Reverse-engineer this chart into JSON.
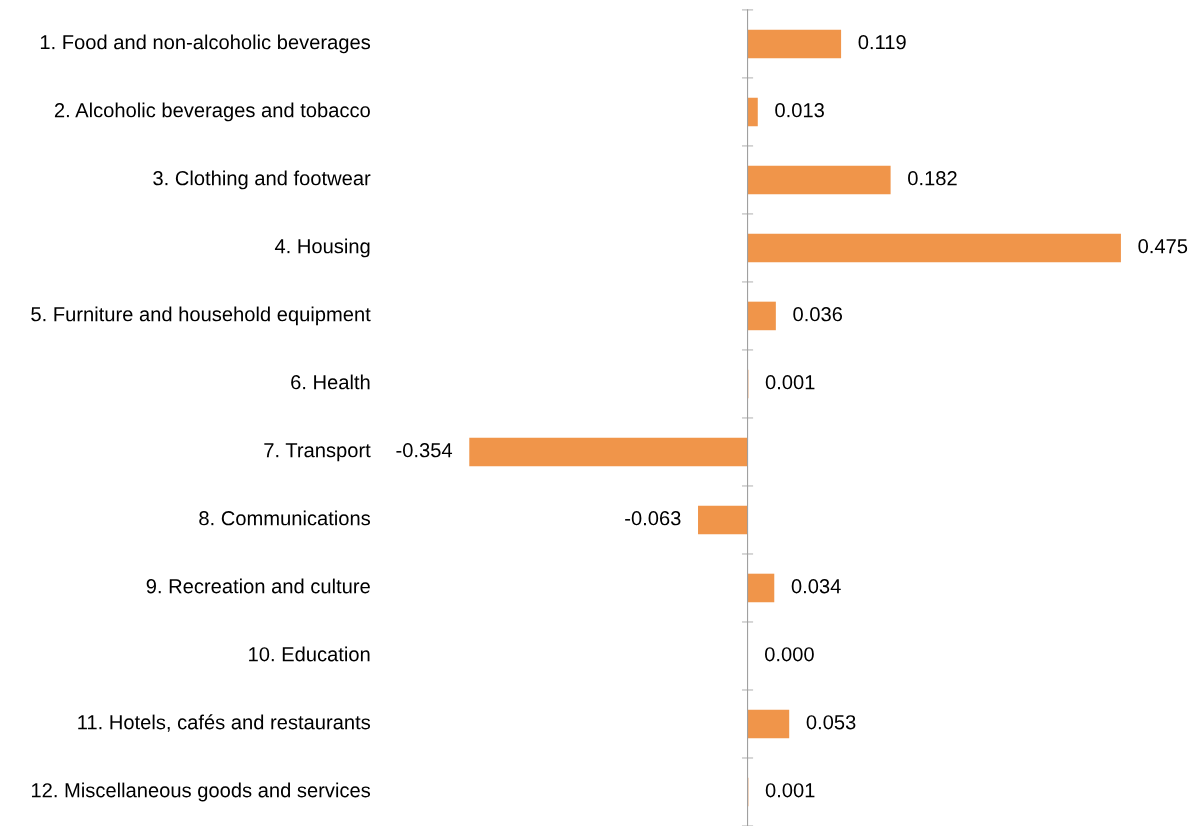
{
  "chart_data": {
    "type": "bar",
    "orientation": "horizontal",
    "categories": [
      "1. Food and non-alcoholic beverages",
      "2. Alcoholic beverages and tobacco",
      "3. Clothing and footwear",
      "4. Housing",
      "5. Furniture and household equipment",
      "6. Health",
      "7. Transport",
      "8. Communications",
      "9. Recreation and culture",
      "10. Education",
      "11. Hotels, cafés and restaurants",
      "12. Miscellaneous goods and services"
    ],
    "values": [
      0.119,
      0.013,
      0.182,
      0.475,
      0.036,
      0.001,
      -0.354,
      -0.063,
      0.034,
      0.0,
      0.053,
      0.001
    ],
    "value_labels": [
      "0.119",
      "0.013",
      "0.182",
      "0.475",
      "0.036",
      "0.001",
      "-0.354",
      "-0.063",
      "0.034",
      "0.000",
      "0.053",
      "0.001"
    ],
    "color": "#f0954a",
    "tick_labels": "y"
  }
}
